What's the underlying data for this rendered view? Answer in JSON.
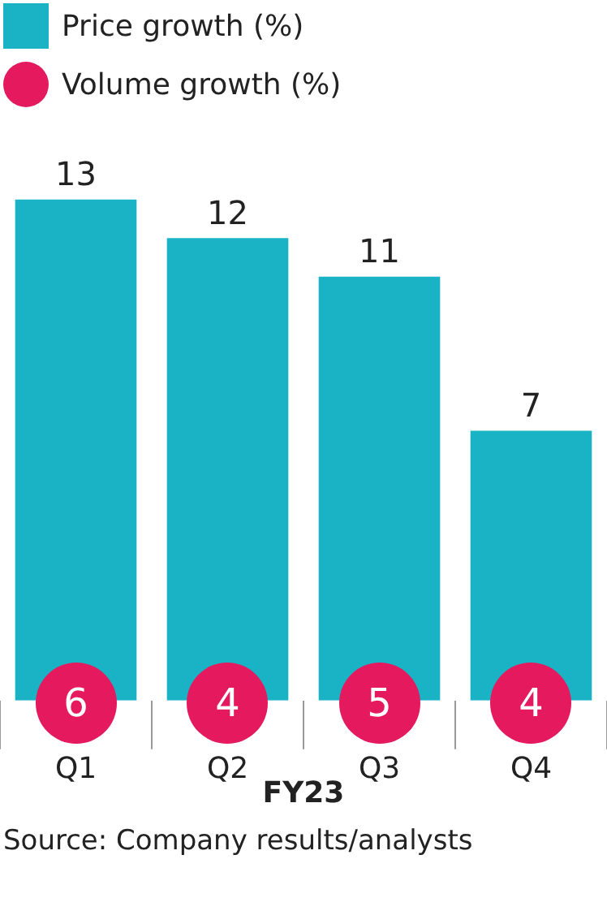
{
  "chart_data": {
    "type": "bar",
    "categories": [
      "Q1",
      "Q2",
      "Q3",
      "Q4"
    ],
    "series": [
      {
        "name": "Price growth (%)",
        "color": "#1ab3c6",
        "values": [
          13,
          12,
          11,
          7
        ]
      }
    ],
    "data_labels": true,
    "legend": "top left",
    "xlabel": "FY23",
    "annotations": [
      "Volume growth (%)",
      {
        "text": "6",
        "x": "Q1"
      },
      {
        "text": "4",
        "x": "Q2"
      },
      {
        "text": "5",
        "x": "Q3"
      },
      {
        "text": "4",
        "x": "Q4"
      },
      "Source: Company results/analysts"
    ]
  }
}
